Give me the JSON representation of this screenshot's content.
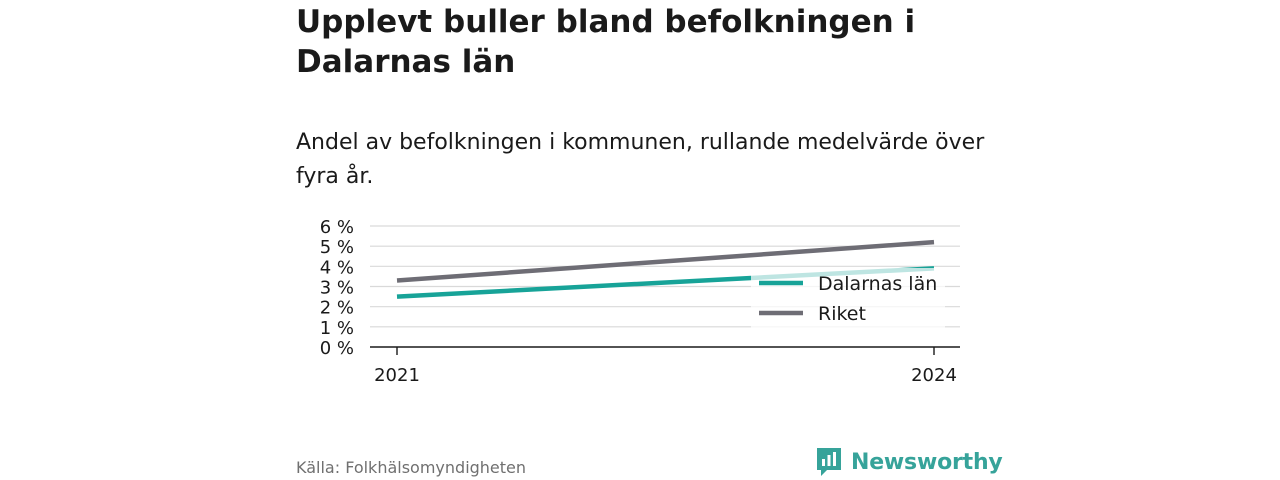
{
  "title": "Upplevt buller bland befolkningen i Dalarnas län",
  "subtitle": "Andel av befolkningen i kommunen, rullande medelvärde över fyra år.",
  "source": "Källa: Folkhälsomyndigheten",
  "brand": {
    "name": "Newsworthy",
    "logo_icon": "newsworthy-logo-icon",
    "color": "#36a39a"
  },
  "chart_data": {
    "type": "line",
    "x": [
      2021,
      2024
    ],
    "x_ticks": [
      "2021",
      "2024"
    ],
    "y_ticks": [
      "0 %",
      "1 %",
      "2 %",
      "3 %",
      "4 %",
      "5 %",
      "6 %"
    ],
    "ylim": [
      0,
      6
    ],
    "grid": true,
    "legend_position": "right",
    "series": [
      {
        "name": "Dalarnas län",
        "color": "#17a398",
        "values": [
          2.5,
          3.9
        ]
      },
      {
        "name": "Riket",
        "color": "#6e6d75",
        "values": [
          3.3,
          5.2
        ]
      }
    ]
  }
}
